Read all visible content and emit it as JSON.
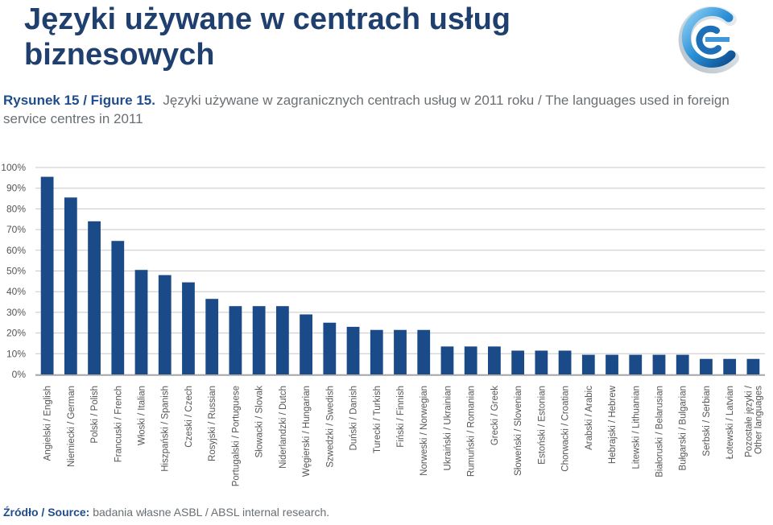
{
  "slide": {
    "title": "Języki używane w centrach usług biznesowych"
  },
  "figure": {
    "label": "Rysunek 15 / Figure 15.",
    "caption": "Języki używane w zagranicznych centrach usług w 2011 roku / The languages used in foreign service centres in 2011"
  },
  "source": {
    "label": "Źródło / Source:",
    "text": "badania własne ASBL / ABSL internal research."
  },
  "colors": {
    "bar": "#1a4a87",
    "title": "#1f3f6e",
    "grid": "#c8c8c8"
  },
  "chart_data": {
    "type": "bar",
    "title": "Języki używane w zagranicznych centrach usług w 2011 roku / The languages used in foreign service centres in 2011",
    "xlabel": "",
    "ylabel": "",
    "ylim": [
      0,
      100
    ],
    "yticks": [
      "0%",
      "10%",
      "20%",
      "30%",
      "40%",
      "50%",
      "60%",
      "70%",
      "80%",
      "90%",
      "100%"
    ],
    "grid": true,
    "categories": [
      "Angielski / English",
      "Niemiecki / German",
      "Polski / Polish",
      "Francuski / French",
      "Włoski / Italian",
      "Hiszpański / Spanish",
      "Czeski / Czech",
      "Rosyjski / Russian",
      "Portugalski / Portuguese",
      "Słowacki / Slovak",
      "Niderlandzki / Dutch",
      "Węgierski / Hungarian",
      "Szwedzki / Swedish",
      "Duński / Danish",
      "Turecki / Turkish",
      "Fiński / Finnish",
      "Norweski / Norwegian",
      "Ukraiński / Ukrainian",
      "Rumuński / Romanian",
      "Grecki / Greek",
      "Słoweński / Slovenian",
      "Estoński / Estonian",
      "Chorwacki / Croatian",
      "Arabski / Arabic",
      "Hebrajski / Hebrew",
      "Litewski / Lithuanian",
      "Białoruski / Belarusian",
      "Bułgarski / Bulgarian",
      "Serbski / Serbian",
      "Łotewski / Latvian",
      "Pozostałe języki / Other languages"
    ],
    "values": [
      95.5,
      85.5,
      74,
      64.5,
      50.5,
      48,
      44.5,
      36.5,
      33,
      33,
      33,
      29,
      25,
      23,
      21.5,
      21.5,
      21.5,
      13.5,
      13.5,
      13.5,
      11.5,
      11.5,
      11.5,
      9.5,
      9.5,
      9.5,
      9.5,
      9.5,
      7.5,
      7.5,
      7.5
    ]
  }
}
